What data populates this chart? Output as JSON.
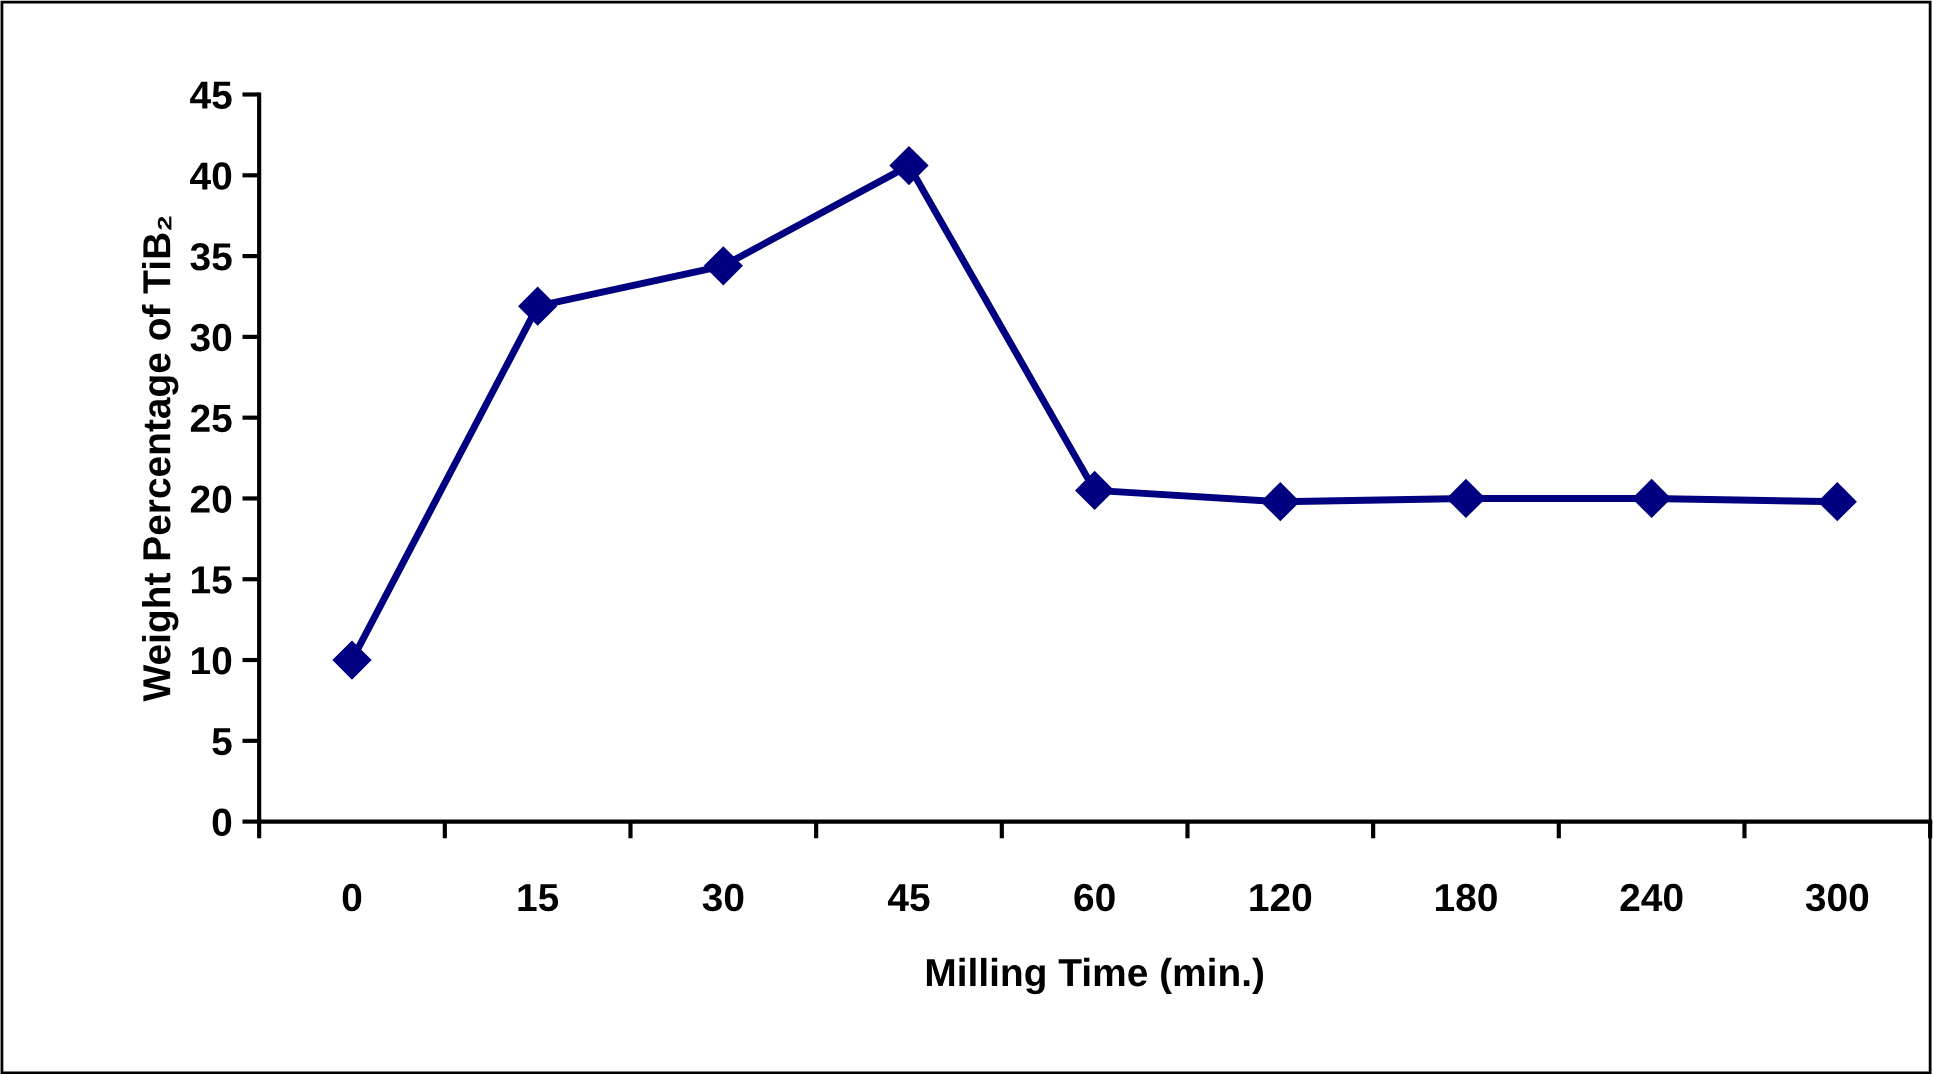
{
  "chart_data": {
    "type": "line",
    "xlabel": "Milling Time (min.)",
    "ylabel": "Weight Percentage of TiB₂",
    "categories": [
      "0",
      "15",
      "30",
      "45",
      "60",
      "120",
      "180",
      "240",
      "300"
    ],
    "series": [
      {
        "color": "#000080",
        "values": [
          10,
          31.9,
          34.4,
          40.6,
          20.5,
          19.8,
          20.0,
          20.0,
          19.8
        ]
      }
    ],
    "ylim": [
      0,
      45
    ],
    "yticks": [
      0,
      5,
      10,
      15,
      20,
      25,
      30,
      35,
      40,
      45
    ],
    "grid": false,
    "legend": false,
    "marker": "diamond",
    "line_style": "solid"
  }
}
